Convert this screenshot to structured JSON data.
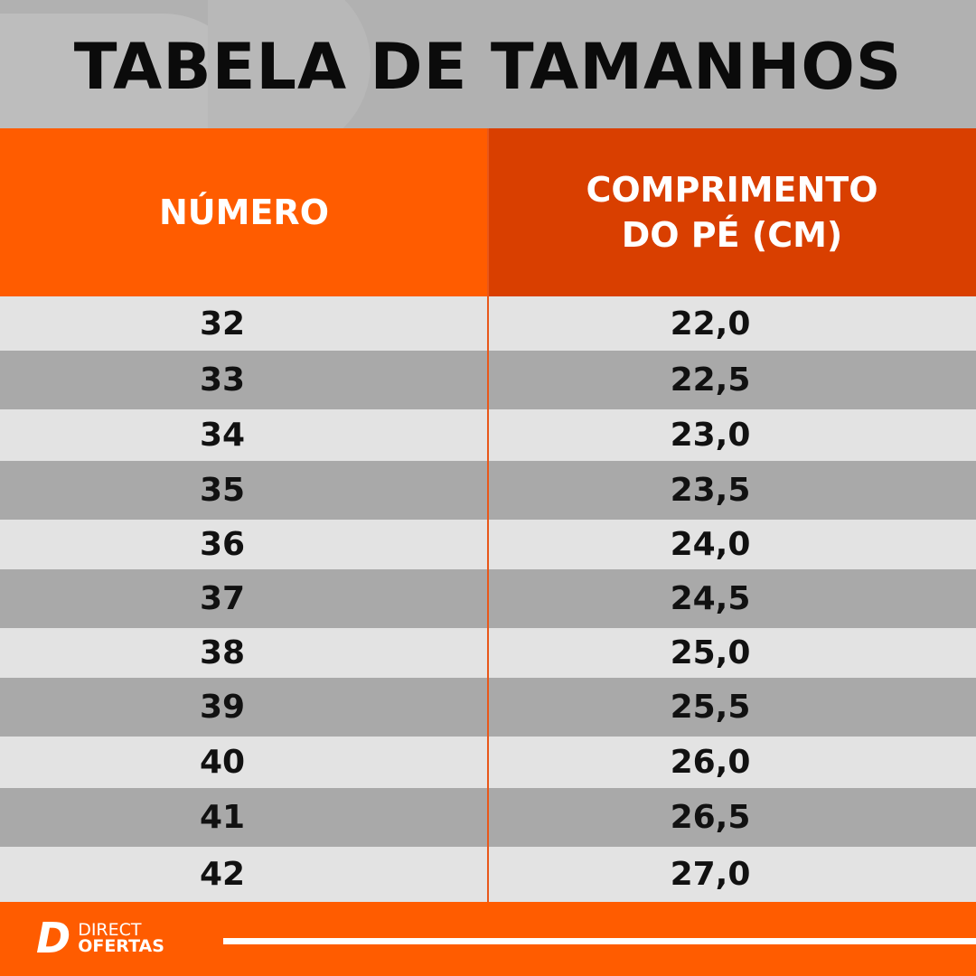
{
  "title": "TABELA DE TAMANHOS",
  "headers": {
    "number": "NÚMERO",
    "length_line1": "COMPRIMENTO",
    "length_line2": "DO PÉ (CM)"
  },
  "rows": [
    {
      "number": "32",
      "length": "22,0"
    },
    {
      "number": "33",
      "length": "22,5"
    },
    {
      "number": "34",
      "length": "23,0"
    },
    {
      "number": "35",
      "length": "23,5"
    },
    {
      "number": "36",
      "length": "24,0"
    },
    {
      "number": "37",
      "length": "24,5"
    },
    {
      "number": "38",
      "length": "25,0"
    },
    {
      "number": "39",
      "length": "25,5"
    },
    {
      "number": "40",
      "length": "26,0"
    },
    {
      "number": "41",
      "length": "26,5"
    },
    {
      "number": "42",
      "length": "27,0"
    }
  ],
  "brand": {
    "mark": "D",
    "line1": "DIRECT",
    "line2": "OFERTAS"
  },
  "colors": {
    "orange": "#ff5c00",
    "dark_orange": "#d93f00",
    "row_light": "#e3e3e3",
    "row_dark": "#a9a9a9"
  }
}
